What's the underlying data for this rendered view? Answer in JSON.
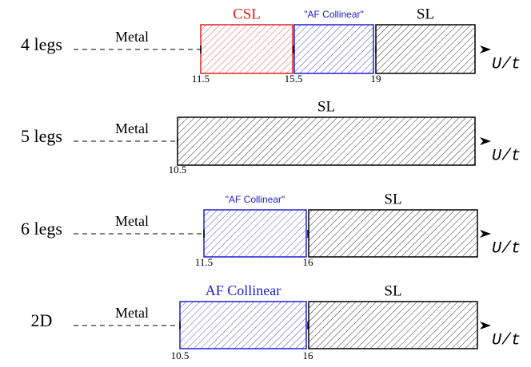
{
  "rows": [
    {
      "label": "4 legs",
      "metal": "Metal",
      "axis_label": "U/t",
      "phases": [
        {
          "name": "CSL",
          "color": "#e02020"
        },
        {
          "name": "\"AF Collinear\"",
          "color": "#2020d0"
        },
        {
          "name": "SL",
          "color": "#000000"
        }
      ],
      "boundaries": [
        11.5,
        15.5,
        19
      ]
    },
    {
      "label": "5 legs",
      "metal": "Metal",
      "axis_label": "U/t",
      "phases": [
        {
          "name": "SL",
          "color": "#000000"
        }
      ],
      "boundaries": [
        10.5
      ]
    },
    {
      "label": "6 legs",
      "metal": "Metal",
      "axis_label": "U/t",
      "phases": [
        {
          "name": "\"AF Collinear\"",
          "color": "#2020d0"
        },
        {
          "name": "SL",
          "color": "#000000"
        }
      ],
      "boundaries": [
        11.5,
        16
      ]
    },
    {
      "label": "2D",
      "metal": "Metal",
      "axis_label": "U/t",
      "phases": [
        {
          "name": "AF Collinear",
          "color": "#2020d0"
        },
        {
          "name": "SL",
          "color": "#000000"
        }
      ],
      "boundaries": [
        10.5,
        16
      ]
    }
  ]
}
